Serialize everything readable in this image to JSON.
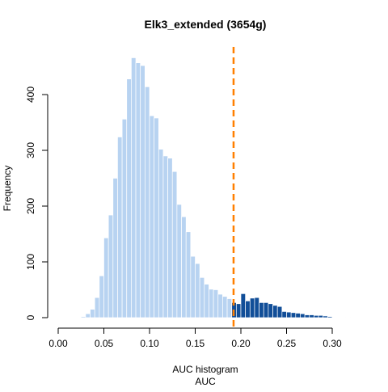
{
  "chart_data": {
    "type": "bar",
    "title": "Elk3_extended (3654g)",
    "subtitle": "AUC histogram",
    "xlabel": "AUC",
    "ylabel": "Frequency",
    "xlim": [
      0.0,
      0.32
    ],
    "ylim": [
      0,
      480
    ],
    "x_ticks": [
      "0.00",
      "0.05",
      "0.10",
      "0.15",
      "0.20",
      "0.25",
      "0.30"
    ],
    "y_ticks": [
      "0",
      "100",
      "200",
      "300",
      "400"
    ],
    "bin_width": 0.005,
    "bins_start": [
      0.025,
      0.03,
      0.035,
      0.04,
      0.045,
      0.05,
      0.055,
      0.06,
      0.065,
      0.07,
      0.075,
      0.08,
      0.085,
      0.09,
      0.095,
      0.1,
      0.105,
      0.11,
      0.115,
      0.12,
      0.125,
      0.13,
      0.135,
      0.14,
      0.145,
      0.15,
      0.155,
      0.16,
      0.165,
      0.17,
      0.175,
      0.18,
      0.185,
      0.19,
      0.195,
      0.2,
      0.205,
      0.21,
      0.215,
      0.22,
      0.225,
      0.23,
      0.235,
      0.24,
      0.245,
      0.25,
      0.255,
      0.26,
      0.265,
      0.27,
      0.275,
      0.28,
      0.285,
      0.29,
      0.295,
      0.3,
      0.305,
      0.31,
      0.315
    ],
    "values": [
      2,
      7,
      15,
      36,
      75,
      143,
      184,
      250,
      324,
      356,
      428,
      466,
      457,
      452,
      414,
      362,
      358,
      302,
      290,
      286,
      262,
      203,
      181,
      154,
      110,
      97,
      72,
      60,
      51,
      50,
      42,
      38,
      34,
      27,
      25,
      43,
      30,
      35,
      36,
      27,
      27,
      25,
      22,
      20,
      11,
      10,
      9,
      8,
      7,
      5,
      5,
      4,
      4,
      3,
      2,
      1,
      1,
      1,
      1
    ],
    "threshold": 0.192,
    "colors": {
      "below_threshold": "#B8D3F1",
      "above_threshold": "#114E98",
      "threshold_line": "#FF7F00",
      "bar_border": "#FFFFFF"
    },
    "grid": false,
    "legend": "none"
  }
}
